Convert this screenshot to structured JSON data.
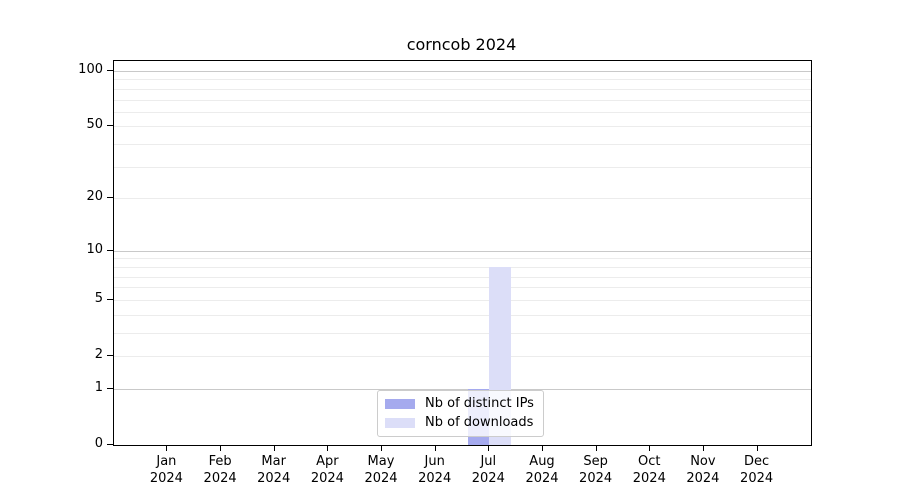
{
  "chart_data": {
    "type": "bar",
    "title": "corncob 2024",
    "categories": [
      "Jan 2024",
      "Feb 2024",
      "Mar 2024",
      "Apr 2024",
      "May 2024",
      "Jun 2024",
      "Jul 2024",
      "Aug 2024",
      "Sep 2024",
      "Oct 2024",
      "Nov 2024",
      "Dec 2024"
    ],
    "series": [
      {
        "name": "Nb of distinct IPs",
        "color": "#a5aaee",
        "values": [
          0,
          0,
          0,
          0,
          0,
          0,
          1,
          0,
          0,
          0,
          0,
          0
        ]
      },
      {
        "name": "Nb of downloads",
        "color": "#dcdef8",
        "values": [
          0,
          0,
          0,
          0,
          0,
          0,
          8,
          0,
          0,
          0,
          0,
          0
        ]
      }
    ],
    "xlabel": "",
    "ylabel": "",
    "y_scale": "log1p",
    "ylim": [
      0,
      113
    ],
    "y_ticks": [
      0,
      1,
      2,
      5,
      10,
      20,
      50,
      100
    ],
    "major_gridlines": [
      1,
      10,
      100
    ],
    "minor_gridlines": [
      2,
      3,
      4,
      5,
      6,
      7,
      8,
      9,
      20,
      30,
      40,
      50,
      60,
      70,
      80,
      90
    ],
    "grid": true,
    "legend_position": "bottom-center",
    "colors": {
      "axis": "#000000",
      "major_grid": "#c9c9c9",
      "minor_grid": "#ececec",
      "background": "#ffffff"
    }
  }
}
